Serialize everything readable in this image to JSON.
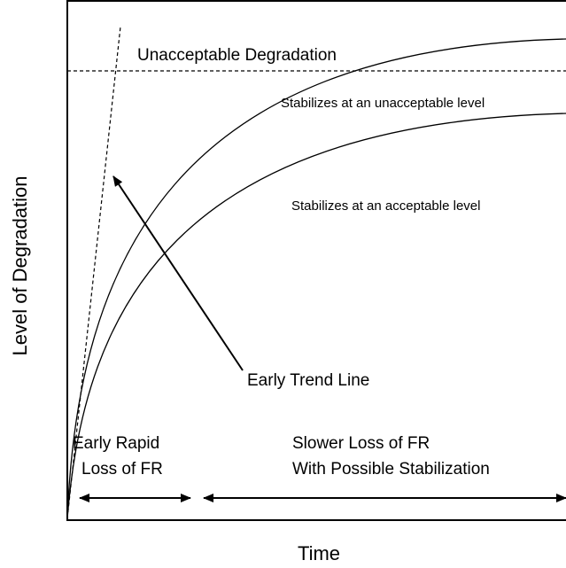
{
  "axes": {
    "x_label": "Time",
    "y_label": "Level of Degradation"
  },
  "annotations": {
    "threshold": "Unacceptable Degradation",
    "upper_curve": "Stabilizes at an unacceptable level",
    "lower_curve": "Stabilizes at an acceptable level",
    "trend_line": "Early Trend Line"
  },
  "phases": [
    {
      "lines": [
        "Early Rapid",
        "Loss of FR"
      ]
    },
    {
      "lines": [
        "Slower Loss of FR",
        "With Possible Stabilization"
      ]
    }
  ]
}
